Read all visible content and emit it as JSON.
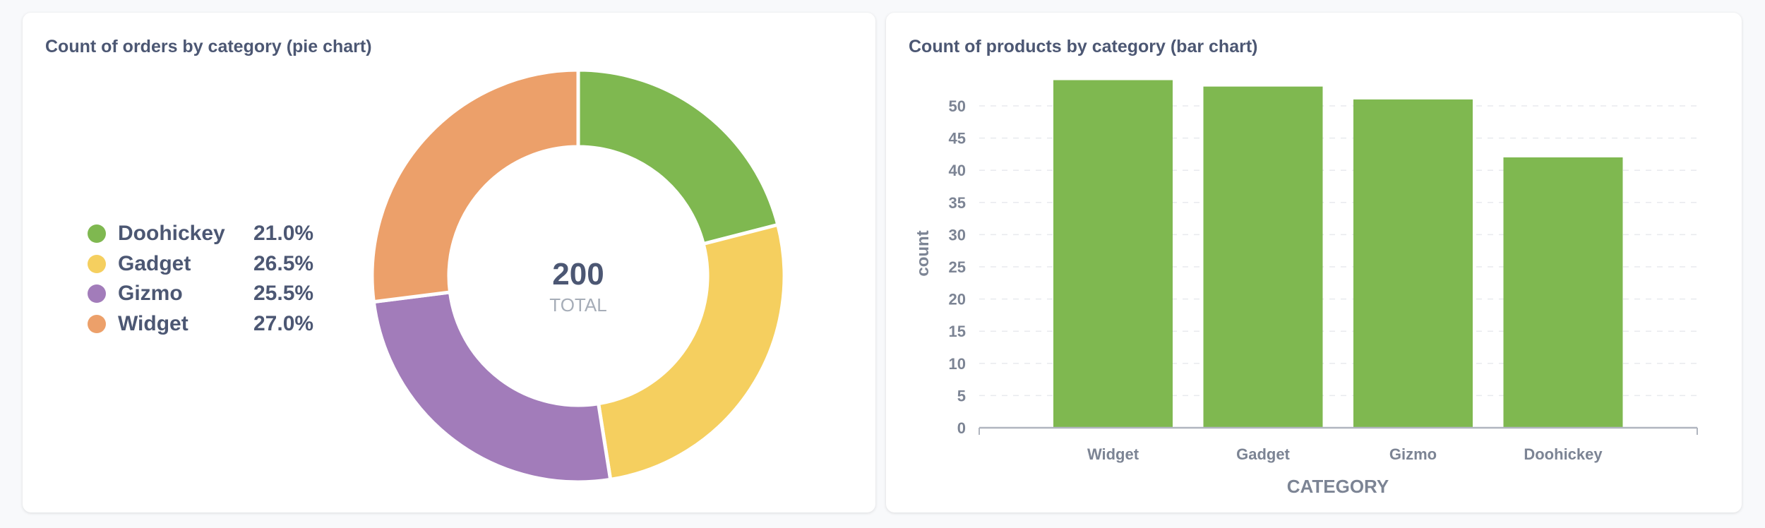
{
  "pie_card": {
    "title": "Count of orders by category (pie chart)"
  },
  "bar_card": {
    "title": "Count of products by category (bar chart)"
  },
  "chart_data": [
    {
      "type": "pie",
      "variant": "donut",
      "title": "Count of orders by category (pie chart)",
      "center_value": "200",
      "center_label": "TOTAL",
      "legend_position": "left",
      "slices": [
        {
          "label": "Doohickey",
          "percent": 21.0,
          "percent_label": "21.0%",
          "color": "#7fb850"
        },
        {
          "label": "Gadget",
          "percent": 26.5,
          "percent_label": "26.5%",
          "color": "#f5cf5f"
        },
        {
          "label": "Gizmo",
          "percent": 25.5,
          "percent_label": "25.5%",
          "color": "#a27cba"
        },
        {
          "label": "Widget",
          "percent": 27.0,
          "percent_label": "27.0%",
          "color": "#eca06a"
        }
      ]
    },
    {
      "type": "bar",
      "title": "Count of products by category (bar chart)",
      "categories": [
        "Widget",
        "Gadget",
        "Gizmo",
        "Doohickey"
      ],
      "values": [
        54,
        53,
        51,
        42
      ],
      "xlabel": "CATEGORY",
      "ylabel": "count",
      "ylim": [
        0,
        55
      ],
      "yticks": [
        0,
        5,
        10,
        15,
        20,
        25,
        30,
        35,
        40,
        45,
        50
      ],
      "grid": true,
      "color": "#7fb850"
    }
  ]
}
